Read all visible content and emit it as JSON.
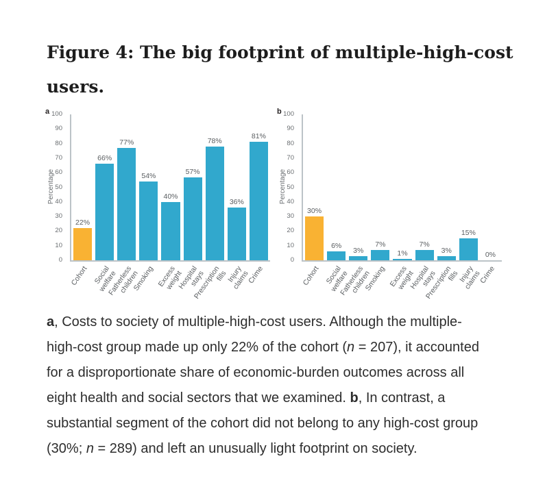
{
  "figure": {
    "title_lines": [
      "Figure 4: The big footprint of multiple-high-cost",
      "users."
    ]
  },
  "colors": {
    "bar_blue": "#31a8cd",
    "bar_orange": "#f9b233",
    "axis_line": "#bcc3c7",
    "chart_text": "#595d60",
    "title_text": "#1d1d1d",
    "caption_text": "#2d2d2d"
  },
  "chart_data": [
    {
      "type": "bar",
      "panel": "a",
      "ylabel": "Percentage",
      "ylim": [
        0,
        100
      ],
      "yticks": [
        0,
        10,
        20,
        30,
        40,
        50,
        60,
        70,
        80,
        90,
        100
      ],
      "grid": false,
      "categories": [
        "Cohort",
        "Social\nwelfare",
        "Fatherless\nchildren",
        "Smoking",
        "Excess\nweight",
        "Hospital\nstays",
        "Prescription\nfills",
        "Injury\nclaims",
        "Crime"
      ],
      "values": [
        22,
        66,
        77,
        54,
        40,
        57,
        78,
        36,
        81
      ],
      "labels": [
        "22%",
        "66%",
        "77%",
        "54%",
        "40%",
        "57%",
        "78%",
        "36%",
        "81%"
      ],
      "bar_colors": [
        "#f9b233",
        "#31a8cd",
        "#31a8cd",
        "#31a8cd",
        "#31a8cd",
        "#31a8cd",
        "#31a8cd",
        "#31a8cd",
        "#31a8cd"
      ]
    },
    {
      "type": "bar",
      "panel": "b",
      "ylabel": "Percentage",
      "ylim": [
        0,
        100
      ],
      "yticks": [
        0,
        10,
        20,
        30,
        40,
        50,
        60,
        70,
        80,
        90,
        100
      ],
      "grid": false,
      "categories": [
        "Cohort",
        "Social\nwelfare",
        "Fatherless\nchildren",
        "Smoking",
        "Excess\nweight",
        "Hospital\nstays",
        "Prescription\nfills",
        "Injury\nclaims",
        "Crime"
      ],
      "values": [
        30,
        6,
        3,
        7,
        1,
        7,
        3,
        15,
        0
      ],
      "labels": [
        "30%",
        "6%",
        "3%",
        "7%",
        "1%",
        "7%",
        "3%",
        "15%",
        "0%"
      ],
      "bar_colors": [
        "#f9b233",
        "#31a8cd",
        "#31a8cd",
        "#31a8cd",
        "#31a8cd",
        "#31a8cd",
        "#31a8cd",
        "#31a8cd",
        "#31a8cd"
      ]
    }
  ],
  "caption": {
    "lines": [
      {
        "segments": [
          {
            "t": "a",
            "b": true
          },
          {
            "t": ", Costs to society of multiple-high-cost users. Although the multiple-"
          }
        ]
      },
      {
        "segments": [
          {
            "t": "high-cost group made up only 22% of the cohort ("
          },
          {
            "t": "n",
            "i": true
          },
          {
            "t": " = 207), it accounted"
          }
        ]
      },
      {
        "segments": [
          {
            "t": "for a disproportionate share of economic-burden outcomes across all"
          }
        ]
      },
      {
        "segments": [
          {
            "t": "eight health and social sectors that we examined. "
          },
          {
            "t": "b",
            "b": true
          },
          {
            "t": ", In contrast, a"
          }
        ]
      },
      {
        "segments": [
          {
            "t": "substantial segment of the cohort did not belong to any high-cost group"
          }
        ]
      },
      {
        "segments": [
          {
            "t": "(30%; "
          },
          {
            "t": "n",
            "i": true
          },
          {
            "t": " = 289) and left an unusually light footprint on society."
          }
        ]
      }
    ]
  }
}
